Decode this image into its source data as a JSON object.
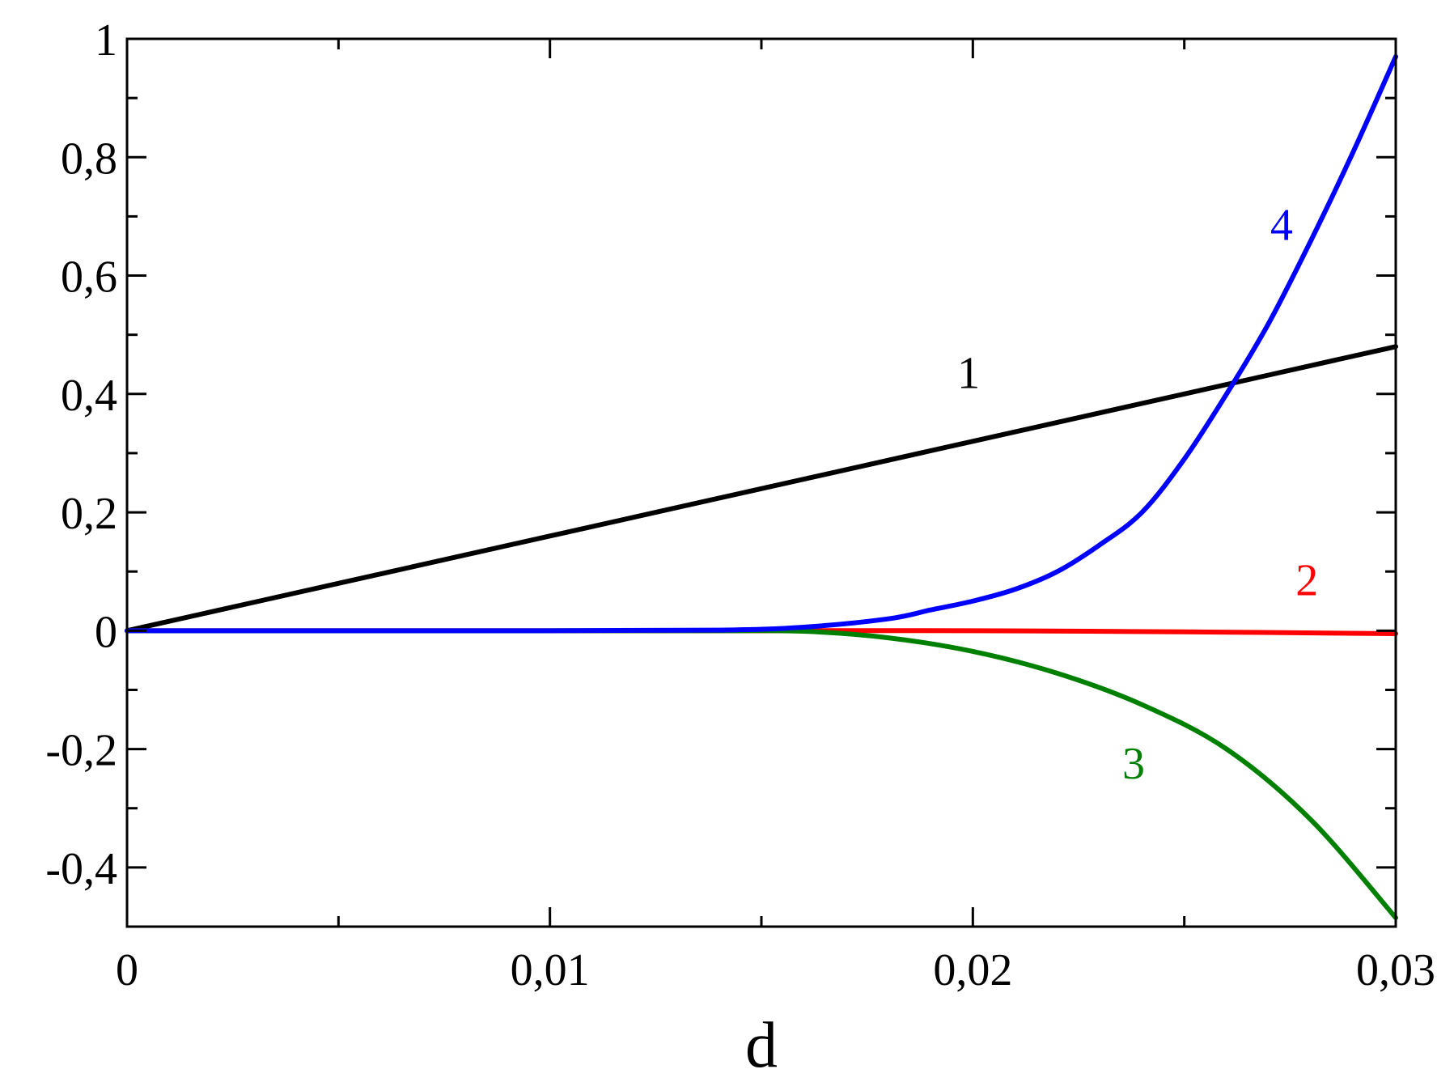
{
  "chart_data": {
    "type": "line",
    "title": "",
    "xlabel": "d",
    "ylabel": "",
    "xlim": [
      0,
      0.03
    ],
    "ylim": [
      -0.5,
      1.0
    ],
    "x_ticks": [
      {
        "value": 0,
        "label": "0"
      },
      {
        "value": 0.01,
        "label": "0,01"
      },
      {
        "value": 0.02,
        "label": "0,02"
      },
      {
        "value": 0.03,
        "label": "0,03"
      }
    ],
    "x_minor_ticks": [
      0.005,
      0.015,
      0.025
    ],
    "y_ticks": [
      {
        "value": -0.4,
        "label": "-0,4"
      },
      {
        "value": -0.2,
        "label": "-0,2"
      },
      {
        "value": 0,
        "label": "0"
      },
      {
        "value": 0.2,
        "label": "0,2"
      },
      {
        "value": 0.4,
        "label": "0,4"
      },
      {
        "value": 0.6,
        "label": "0,6"
      },
      {
        "value": 0.8,
        "label": "0,8"
      },
      {
        "value": 1,
        "label": "1"
      }
    ],
    "y_minor_ticks": [
      -0.3,
      -0.1,
      0.1,
      0.3,
      0.5,
      0.7,
      0.9
    ],
    "grid": false,
    "series": [
      {
        "label": "1",
        "color": "#000000",
        "label_at": [
          0.0199,
          0.41
        ],
        "x": [
          0,
          0.005,
          0.01,
          0.015,
          0.02,
          0.025,
          0.03
        ],
        "y": [
          0,
          0.08,
          0.16,
          0.24,
          0.32,
          0.4,
          0.48
        ]
      },
      {
        "label": "2",
        "color": "#ff0000",
        "label_at": [
          0.0279,
          0.06
        ],
        "x": [
          0,
          0.005,
          0.01,
          0.015,
          0.02,
          0.025,
          0.03
        ],
        "y": [
          0,
          0,
          0,
          0,
          0,
          -0.002,
          -0.005
        ]
      },
      {
        "label": "3",
        "color": "#008000",
        "label_at": [
          0.0238,
          -0.25
        ],
        "x": [
          0,
          0.005,
          0.01,
          0.014,
          0.016,
          0.018,
          0.02,
          0.022,
          0.024,
          0.026,
          0.028,
          0.03
        ],
        "y": [
          0,
          0,
          0,
          0,
          -0.001,
          -0.012,
          -0.035,
          -0.072,
          -0.125,
          -0.2,
          -0.32,
          -0.485
        ]
      },
      {
        "label": "4",
        "color": "#0000ff",
        "label_at": [
          0.0273,
          0.66
        ],
        "x": [
          0,
          0.005,
          0.01,
          0.014,
          0.016,
          0.018,
          0.019,
          0.02,
          0.021,
          0.022,
          0.023,
          0.024,
          0.025,
          0.026,
          0.027,
          0.028,
          0.029,
          0.03
        ],
        "y": [
          0,
          0,
          0,
          0.001,
          0.006,
          0.02,
          0.035,
          0.05,
          0.07,
          0.1,
          0.145,
          0.2,
          0.29,
          0.4,
          0.52,
          0.66,
          0.81,
          0.97
        ]
      }
    ]
  }
}
